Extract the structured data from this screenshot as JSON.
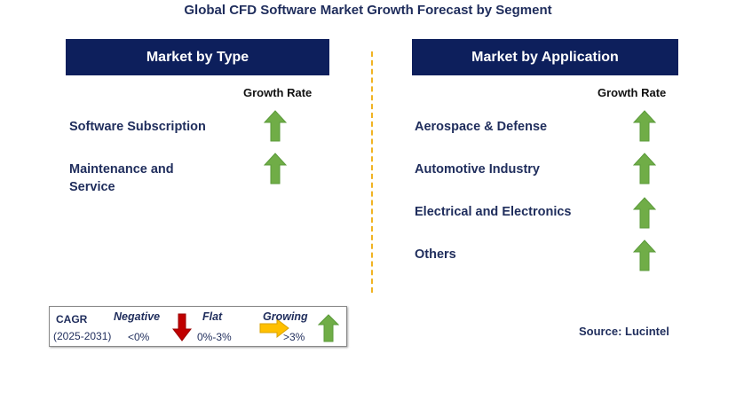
{
  "title": "Global CFD Software Market Growth Forecast by Segment",
  "left_panel": {
    "header": "Market by Type",
    "growth_label": "Growth Rate",
    "items": [
      {
        "label": "Software Subscription",
        "trend": "growing"
      },
      {
        "label": "Maintenance and Service",
        "trend": "growing"
      }
    ]
  },
  "right_panel": {
    "header": "Market by Application",
    "growth_label": "Growth Rate",
    "items": [
      {
        "label": "Aerospace & Defense",
        "trend": "growing"
      },
      {
        "label": "Automotive Industry",
        "trend": "growing"
      },
      {
        "label": "Electrical and Electronics",
        "trend": "growing"
      },
      {
        "label": "Others",
        "trend": "growing"
      }
    ]
  },
  "legend": {
    "cagr_label": "CAGR",
    "period": "(2025-2031)",
    "negative": {
      "label": "Negative",
      "range": "<0%",
      "icon": "down-arrow-icon",
      "color": "#c00000"
    },
    "flat": {
      "label": "Flat",
      "range": "0%-3%",
      "icon": "right-arrow-icon",
      "color": "#ffc000"
    },
    "growing": {
      "label": "Growing",
      "range": ">3%",
      "icon": "up-arrow-icon",
      "color": "#70ad47"
    }
  },
  "source": "Source: Lucintel",
  "colors": {
    "header_bg": "#0d1f5c",
    "accent_divider": "#f0b323",
    "text": "#1f2d5c"
  }
}
